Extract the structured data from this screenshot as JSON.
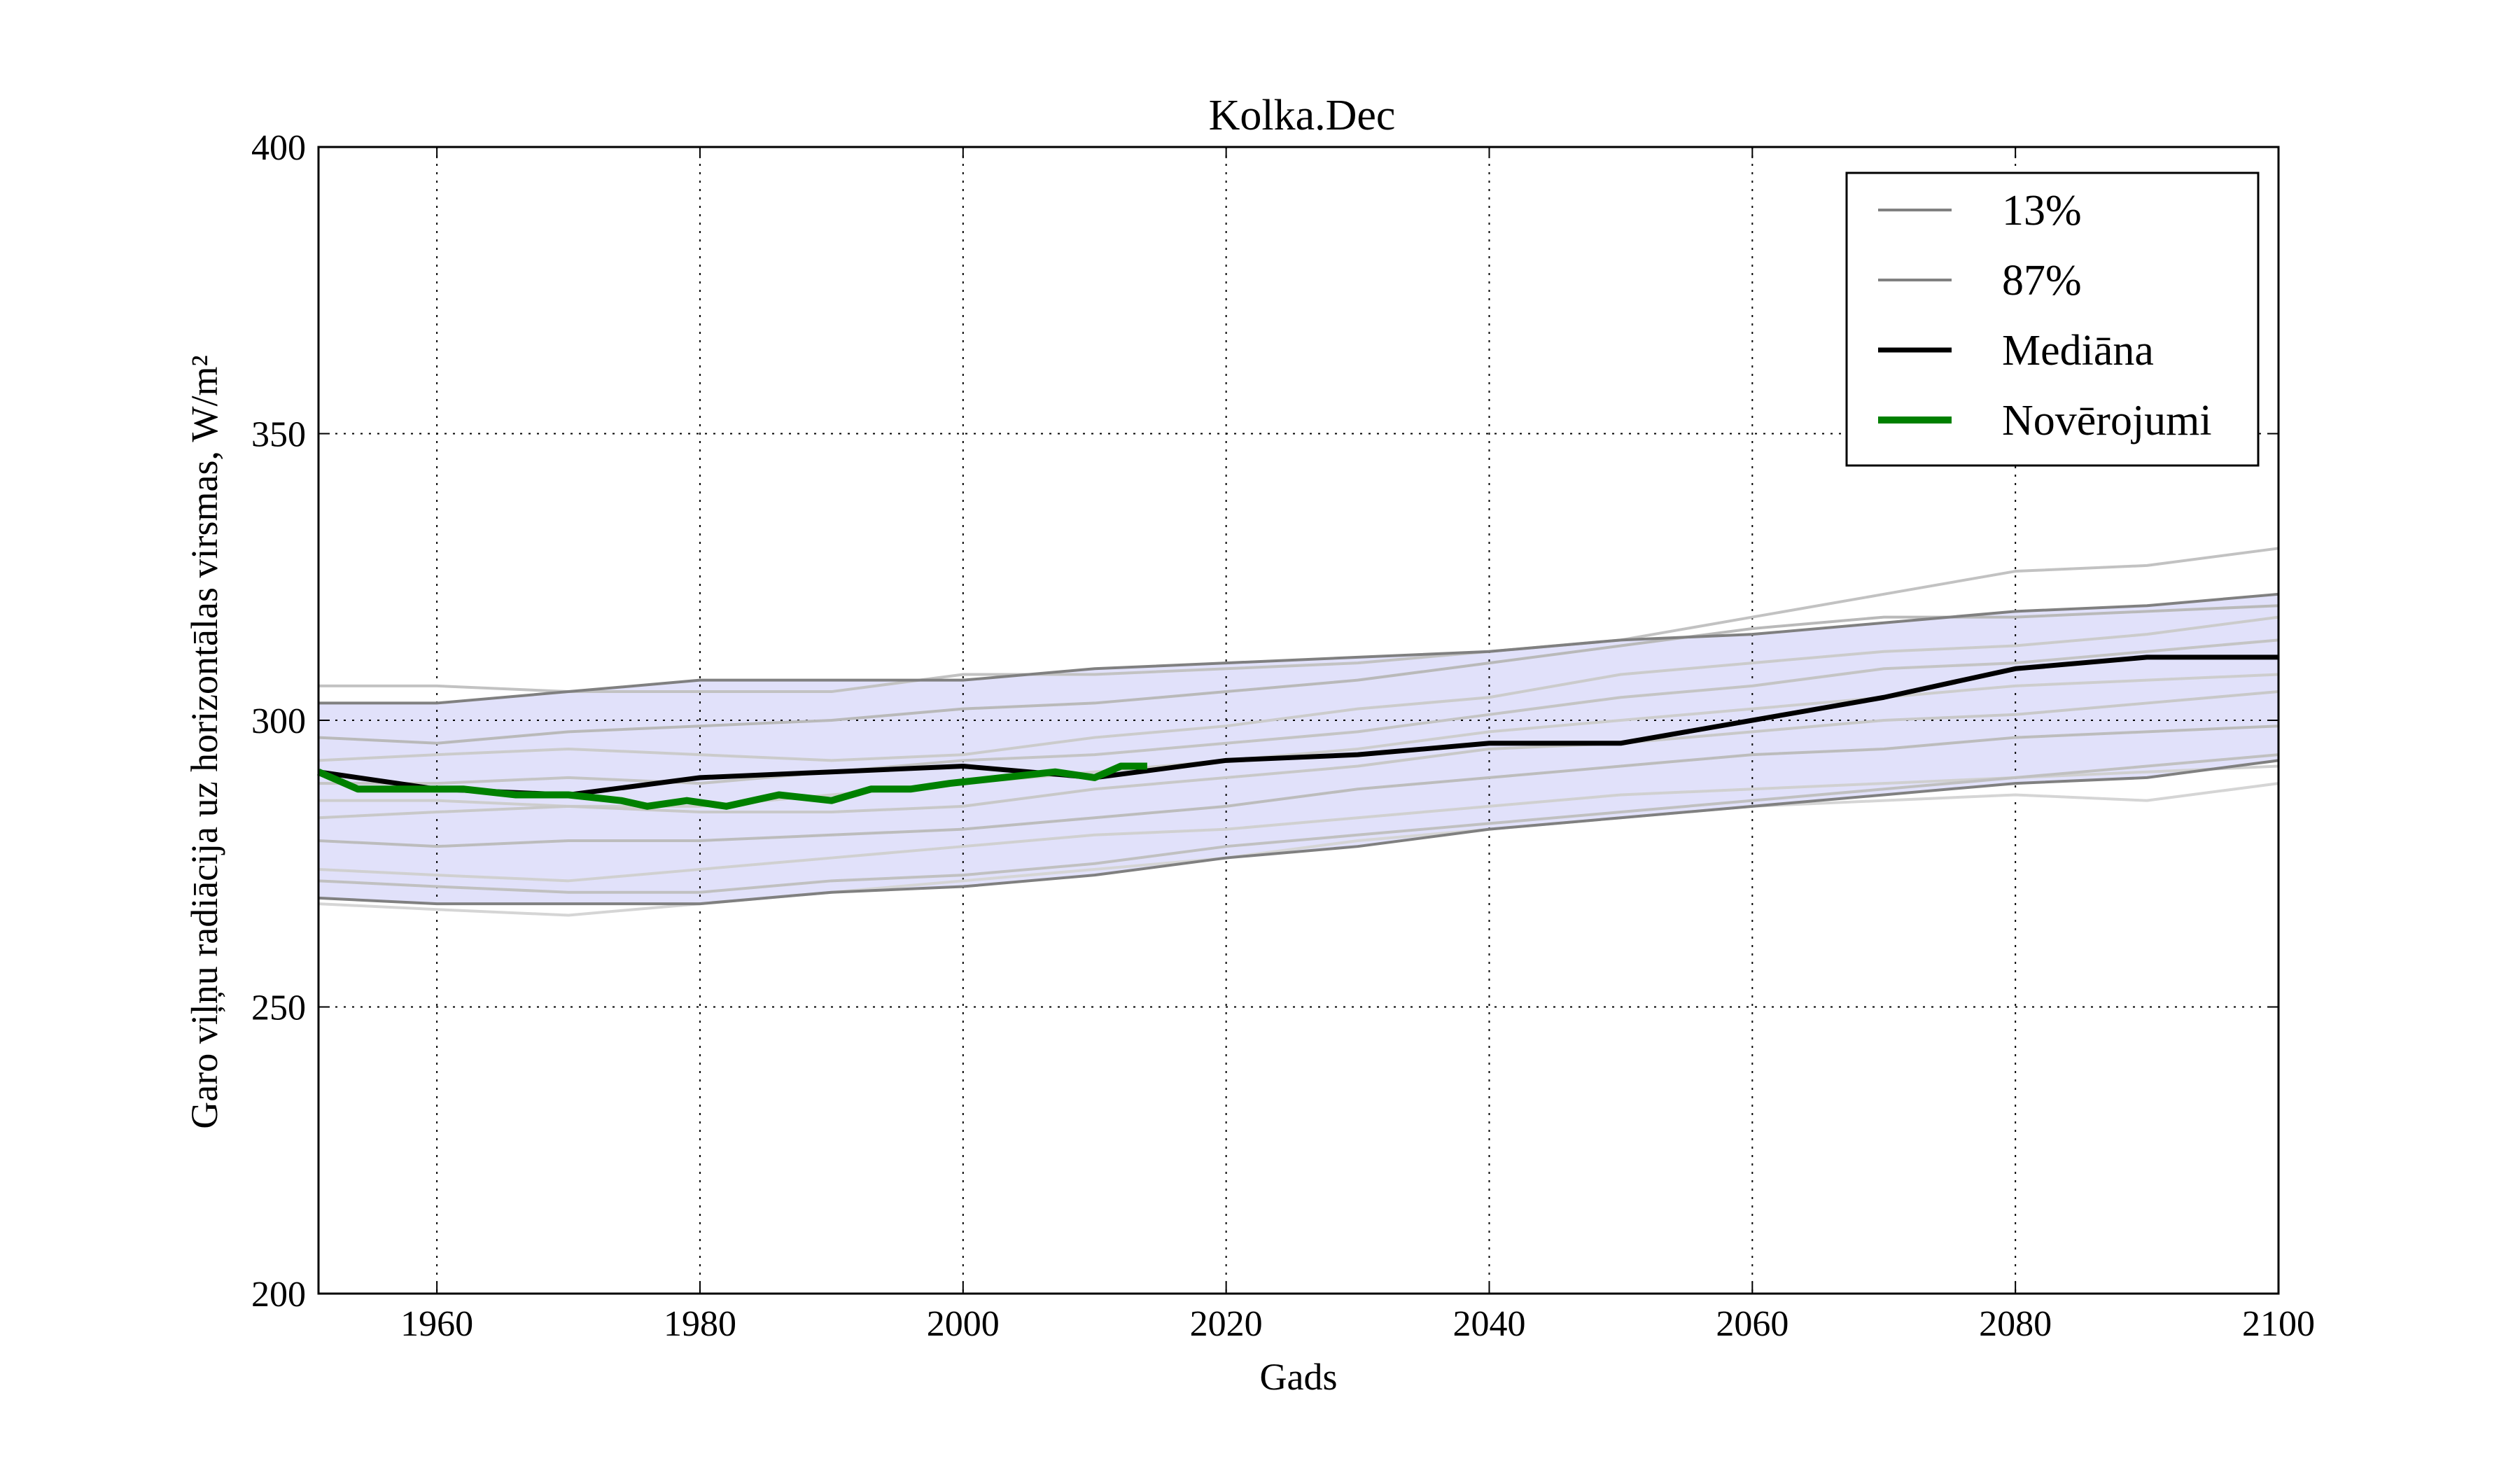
{
  "chart_data": {
    "type": "line",
    "title": "Kolka.Dec",
    "xlabel": "Gads",
    "ylabel": "Garo viļņu radiācija uz horizontālas virsmas, W/m²",
    "xlim": [
      1951,
      2100
    ],
    "ylim": [
      200,
      400
    ],
    "xticks": [
      1960,
      1980,
      2000,
      2020,
      2040,
      2060,
      2080,
      2100
    ],
    "yticks": [
      200,
      250,
      300,
      350,
      400
    ],
    "grid": true,
    "legend_position": "top-right",
    "legend": [
      {
        "label": "13%",
        "color": "#808080",
        "style": "thin"
      },
      {
        "label": "87%",
        "color": "#808080",
        "style": "thin"
      },
      {
        "label": "Mediāna",
        "color": "#000000",
        "style": "thick"
      },
      {
        "label": "Novērojumi",
        "color": "#008000",
        "style": "thicker"
      }
    ],
    "band": {
      "color": "#e1e1fa",
      "x": [
        1951,
        1960,
        1970,
        1980,
        1990,
        2000,
        2010,
        2020,
        2030,
        2040,
        2050,
        2060,
        2070,
        2080,
        2090,
        2100
      ],
      "lower": [
        269,
        268,
        268,
        268,
        270,
        271,
        273,
        276,
        278,
        281,
        283,
        285,
        287,
        289,
        290,
        293
      ],
      "upper": [
        303,
        303,
        305,
        307,
        307,
        307,
        309,
        310,
        311,
        312,
        314,
        315,
        317,
        319,
        320,
        322
      ]
    },
    "x": [
      1951,
      1960,
      1970,
      1980,
      1990,
      2000,
      2010,
      2020,
      2030,
      2040,
      2050,
      2060,
      2070,
      2080,
      2090,
      2100
    ],
    "series": [
      {
        "name": "13%",
        "role": "p13",
        "color": "#808080",
        "values": [
          269,
          268,
          268,
          268,
          270,
          271,
          273,
          276,
          278,
          281,
          283,
          285,
          287,
          289,
          290,
          293
        ]
      },
      {
        "name": "87%",
        "role": "p87",
        "color": "#808080",
        "values": [
          303,
          303,
          305,
          307,
          307,
          307,
          309,
          310,
          311,
          312,
          314,
          315,
          317,
          319,
          320,
          322
        ]
      },
      {
        "name": "Mediāna",
        "role": "median",
        "color": "#000000",
        "values": [
          291,
          288,
          287,
          290,
          291,
          292,
          290,
          293,
          294,
          296,
          296,
          300,
          304,
          309,
          311,
          311
        ]
      },
      {
        "name": "Novērojumi",
        "role": "obs",
        "color": "#008000",
        "x": [
          1951,
          1954,
          1958,
          1962,
          1966,
          1970,
          1974,
          1976,
          1979,
          1982,
          1986,
          1990,
          1993,
          1996,
          1999,
          2003,
          2007,
          2010,
          2012,
          2014
        ],
        "values": [
          291,
          288,
          288,
          288,
          287,
          287,
          286,
          285,
          286,
          285,
          287,
          286,
          288,
          288,
          289,
          290,
          291,
          290,
          292,
          292
        ]
      }
    ],
    "members": [
      {
        "color": "#c2c2c2",
        "values": [
          306,
          306,
          305,
          305,
          305,
          308,
          308,
          309,
          310,
          312,
          314,
          318,
          322,
          326,
          327,
          330
        ]
      },
      {
        "color": "#b9b9b9",
        "values": [
          297,
          296,
          298,
          299,
          300,
          302,
          303,
          305,
          307,
          310,
          313,
          316,
          318,
          318,
          319,
          320
        ]
      },
      {
        "color": "#cbcbcb",
        "values": [
          293,
          294,
          295,
          294,
          293,
          294,
          297,
          299,
          302,
          304,
          308,
          310,
          312,
          313,
          315,
          318
        ]
      },
      {
        "color": "#c4c4c4",
        "values": [
          289,
          289,
          290,
          289,
          291,
          293,
          294,
          296,
          298,
          301,
          304,
          306,
          309,
          310,
          312,
          314
        ]
      },
      {
        "color": "#cdcdcd",
        "values": [
          286,
          286,
          285,
          285,
          287,
          289,
          291,
          293,
          295,
          298,
          300,
          302,
          304,
          306,
          307,
          308
        ]
      },
      {
        "color": "#c8c8c8",
        "values": [
          283,
          284,
          285,
          284,
          284,
          285,
          288,
          290,
          292,
          295,
          296,
          298,
          300,
          301,
          303,
          305
        ]
      },
      {
        "color": "#bcbcbc",
        "values": [
          279,
          278,
          279,
          279,
          280,
          281,
          283,
          285,
          288,
          290,
          292,
          294,
          295,
          297,
          298,
          299
        ]
      },
      {
        "color": "#d0d0d0",
        "values": [
          274,
          273,
          272,
          274,
          276,
          278,
          280,
          281,
          283,
          285,
          287,
          288,
          289,
          290,
          291,
          292
        ]
      },
      {
        "color": "#d5d5d5",
        "values": [
          268,
          267,
          266,
          268,
          270,
          272,
          274,
          276,
          279,
          281,
          283,
          285,
          286,
          287,
          286,
          289
        ]
      },
      {
        "color": "#c0c0c0",
        "values": [
          272,
          271,
          270,
          270,
          272,
          273,
          275,
          278,
          280,
          282,
          284,
          286,
          288,
          290,
          292,
          294
        ]
      }
    ]
  }
}
